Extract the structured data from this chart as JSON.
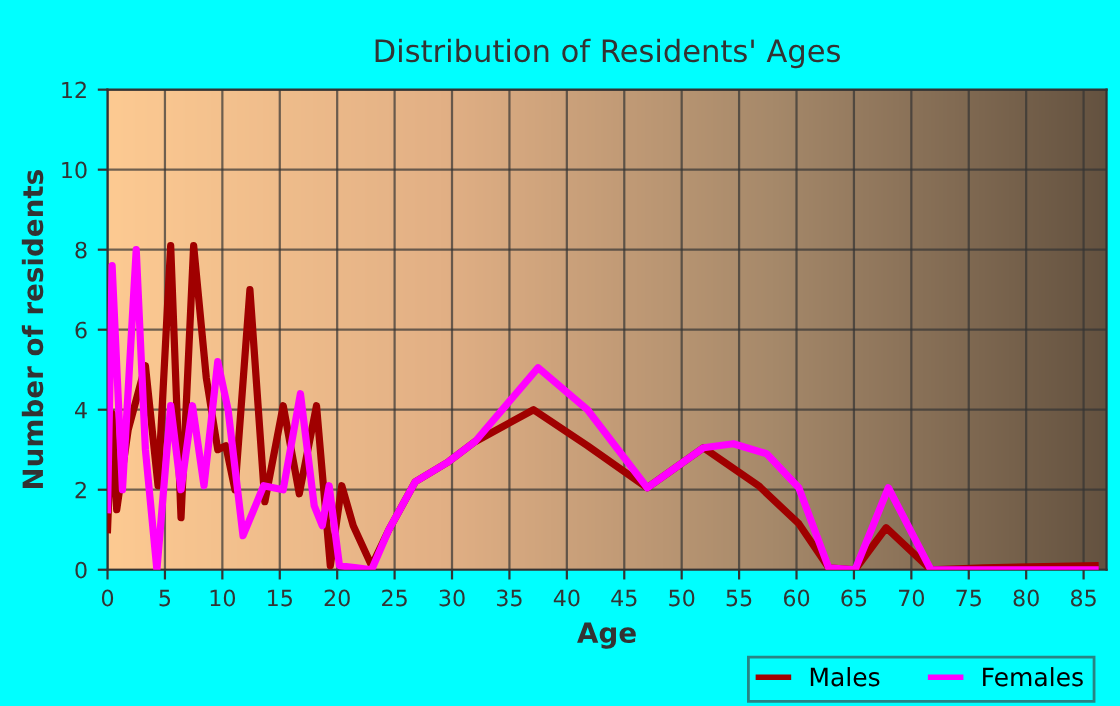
{
  "chart_data": {
    "type": "line",
    "title": "Distribution of Residents' Ages",
    "xlabel": "Age",
    "ylabel": "Number of residents",
    "xlim": [
      0,
      87
    ],
    "xticks": [
      0,
      5,
      10,
      15,
      20,
      25,
      30,
      35,
      40,
      45,
      50,
      55,
      60,
      65,
      70,
      75,
      80,
      85
    ],
    "ylim": [
      0,
      12
    ],
    "yticks": [
      0,
      2,
      4,
      6,
      8,
      10,
      12
    ],
    "grid": true,
    "legend": "bottom right",
    "line_style": "solid",
    "series": [
      {
        "name": "Males",
        "color": "#a00000",
        "x": [
          0,
          0.4,
          0.8,
          1.8,
          3.3,
          4.4,
          5.5,
          6.4,
          7.5,
          8.6,
          9.6,
          10.3,
          11.1,
          12.4,
          13.7,
          15.3,
          16.7,
          18.2,
          19.4,
          20.4,
          21.4,
          23,
          24.5,
          26.8,
          29.7,
          32,
          37.1,
          41.8,
          47,
          51.9,
          56.7,
          60.2,
          62.8,
          65.1,
          67.8,
          71.7,
          76.3,
          86
        ],
        "values": [
          1.0,
          3.9,
          1.5,
          3.5,
          5.1,
          2.1,
          8.1,
          1.3,
          8.1,
          4.8,
          3.0,
          3.1,
          2.0,
          7.0,
          1.7,
          4.1,
          1.9,
          4.1,
          0.1,
          2.1,
          1.1,
          0.1,
          1.0,
          2.2,
          2.7,
          3.2,
          4.0,
          3.1,
          2.05,
          3.05,
          2.1,
          1.15,
          0.05,
          0,
          1.05,
          0,
          0.05,
          0.1
        ]
      },
      {
        "name": "Females",
        "color": "#ff00ff",
        "x": [
          0,
          0.4,
          1.3,
          2.5,
          3.3,
          4.3,
          5.5,
          6.4,
          7.4,
          8.4,
          9.6,
          10.5,
          11.8,
          13.6,
          15.3,
          16.8,
          18,
          18.7,
          19.3,
          20.2,
          21.7,
          23,
          24.5,
          26.8,
          29.7,
          32,
          37.5,
          41.8,
          47,
          51.9,
          54.5,
          57.4,
          60.2,
          62.8,
          65.1,
          68,
          71.7,
          86
        ],
        "values": [
          1.5,
          7.6,
          2.0,
          8.0,
          3.0,
          0,
          4.1,
          2.0,
          4.1,
          2.1,
          5.2,
          4.0,
          0.85,
          2.1,
          2.0,
          4.4,
          1.6,
          1.1,
          2.1,
          0.1,
          0.05,
          0,
          1.0,
          2.2,
          2.7,
          3.2,
          5.05,
          4.0,
          2.05,
          3.05,
          3.15,
          2.9,
          2.05,
          0.05,
          0,
          2.05,
          0,
          0
        ]
      }
    ]
  }
}
